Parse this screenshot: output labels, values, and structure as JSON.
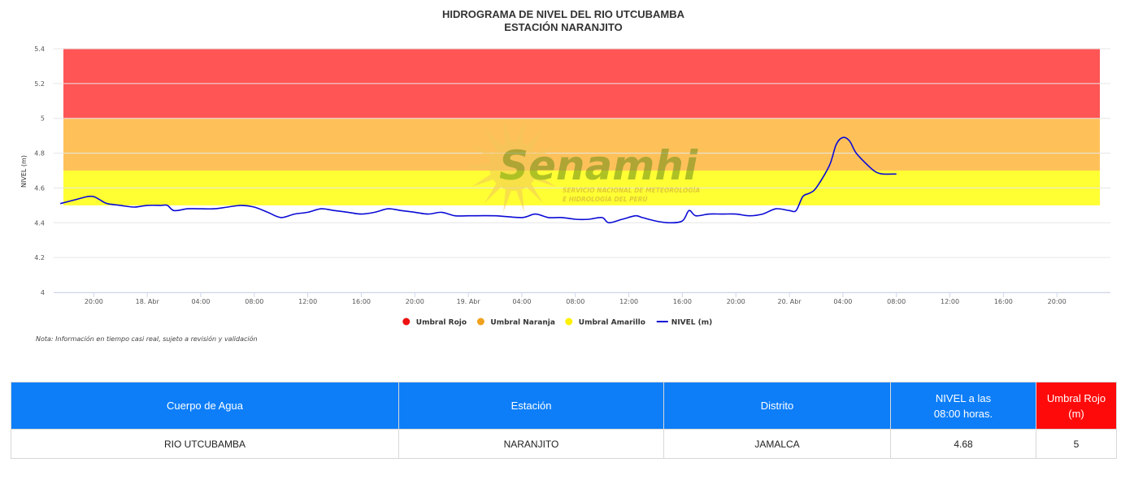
{
  "chart_data": {
    "type": "line",
    "title": "HIDROGRAMA DE NIVEL DEL RIO UTCUBAMBA",
    "subtitle": "ESTACIÓN NARANJITO",
    "ylabel": "NIVEL (m)",
    "ylim": [
      4,
      5.4
    ],
    "yticks": [
      4,
      4.2,
      4.4,
      4.6,
      4.8,
      5,
      5.2,
      5.4
    ],
    "xlim": [
      "2024-04-17T17:00",
      "2024-04-21T00:00"
    ],
    "xticks": [
      {
        "t": "2024-04-17T20:00",
        "label": "20:00"
      },
      {
        "t": "2024-04-18T00:00",
        "label": "18. Abr"
      },
      {
        "t": "2024-04-18T04:00",
        "label": "04:00"
      },
      {
        "t": "2024-04-18T08:00",
        "label": "08:00"
      },
      {
        "t": "2024-04-18T12:00",
        "label": "12:00"
      },
      {
        "t": "2024-04-18T16:00",
        "label": "16:00"
      },
      {
        "t": "2024-04-18T20:00",
        "label": "20:00"
      },
      {
        "t": "2024-04-19T00:00",
        "label": "19. Abr"
      },
      {
        "t": "2024-04-19T04:00",
        "label": "04:00"
      },
      {
        "t": "2024-04-19T08:00",
        "label": "08:00"
      },
      {
        "t": "2024-04-19T12:00",
        "label": "12:00"
      },
      {
        "t": "2024-04-19T16:00",
        "label": "16:00"
      },
      {
        "t": "2024-04-19T20:00",
        "label": "20:00"
      },
      {
        "t": "2024-04-20T00:00",
        "label": "20. Abr"
      },
      {
        "t": "2024-04-20T04:00",
        "label": "04:00"
      },
      {
        "t": "2024-04-20T08:00",
        "label": "08:00"
      },
      {
        "t": "2024-04-20T12:00",
        "label": "12:00"
      },
      {
        "t": "2024-04-20T16:00",
        "label": "16:00"
      },
      {
        "t": "2024-04-20T20:00",
        "label": "20:00"
      }
    ],
    "bands": [
      {
        "name": "Umbral Amarillo",
        "from": 4.5,
        "to": 4.7,
        "color": "#ffff33"
      },
      {
        "name": "Umbral Naranja",
        "from": 4.7,
        "to": 5.0,
        "color": "#fec15a"
      },
      {
        "name": "Umbral Rojo",
        "from": 5.0,
        "to": 5.4,
        "color": "#ff5555"
      }
    ],
    "series": [
      {
        "name": "NIVEL (m)",
        "color": "#0a0ad6",
        "points": [
          [
            "2024-04-17T17:30",
            4.51
          ],
          [
            "2024-04-17T18:30",
            4.53
          ],
          [
            "2024-04-17T19:30",
            4.55
          ],
          [
            "2024-04-17T20:00",
            4.55
          ],
          [
            "2024-04-17T20:30",
            4.53
          ],
          [
            "2024-04-17T21:00",
            4.51
          ],
          [
            "2024-04-17T22:00",
            4.5
          ],
          [
            "2024-04-17T23:00",
            4.49
          ],
          [
            "2024-04-18T00:00",
            4.5
          ],
          [
            "2024-04-18T01:00",
            4.5
          ],
          [
            "2024-04-18T01:30",
            4.5
          ],
          [
            "2024-04-18T02:00",
            4.47
          ],
          [
            "2024-04-18T03:00",
            4.48
          ],
          [
            "2024-04-18T04:00",
            4.48
          ],
          [
            "2024-04-18T05:00",
            4.48
          ],
          [
            "2024-04-18T06:00",
            4.49
          ],
          [
            "2024-04-18T07:00",
            4.5
          ],
          [
            "2024-04-18T08:00",
            4.49
          ],
          [
            "2024-04-18T09:00",
            4.46
          ],
          [
            "2024-04-18T10:00",
            4.43
          ],
          [
            "2024-04-18T11:00",
            4.45
          ],
          [
            "2024-04-18T12:00",
            4.46
          ],
          [
            "2024-04-18T13:00",
            4.48
          ],
          [
            "2024-04-18T14:00",
            4.47
          ],
          [
            "2024-04-18T15:00",
            4.46
          ],
          [
            "2024-04-18T16:00",
            4.45
          ],
          [
            "2024-04-18T17:00",
            4.46
          ],
          [
            "2024-04-18T18:00",
            4.48
          ],
          [
            "2024-04-18T19:00",
            4.47
          ],
          [
            "2024-04-18T20:00",
            4.46
          ],
          [
            "2024-04-18T21:00",
            4.45
          ],
          [
            "2024-04-18T22:00",
            4.46
          ],
          [
            "2024-04-18T23:00",
            4.44
          ],
          [
            "2024-04-19T00:00",
            4.44
          ],
          [
            "2024-04-19T02:00",
            4.44
          ],
          [
            "2024-04-19T04:00",
            4.43
          ],
          [
            "2024-04-19T05:00",
            4.45
          ],
          [
            "2024-04-19T06:00",
            4.43
          ],
          [
            "2024-04-19T07:00",
            4.43
          ],
          [
            "2024-04-19T08:00",
            4.42
          ],
          [
            "2024-04-19T09:00",
            4.42
          ],
          [
            "2024-04-19T10:00",
            4.43
          ],
          [
            "2024-04-19T10:30",
            4.4
          ],
          [
            "2024-04-19T11:30",
            4.42
          ],
          [
            "2024-04-19T12:30",
            4.44
          ],
          [
            "2024-04-19T13:00",
            4.43
          ],
          [
            "2024-04-19T14:00",
            4.41
          ],
          [
            "2024-04-19T15:00",
            4.4
          ],
          [
            "2024-04-19T16:00",
            4.41
          ],
          [
            "2024-04-19T16:30",
            4.47
          ],
          [
            "2024-04-19T17:00",
            4.44
          ],
          [
            "2024-04-19T18:00",
            4.45
          ],
          [
            "2024-04-19T19:00",
            4.45
          ],
          [
            "2024-04-19T20:00",
            4.45
          ],
          [
            "2024-04-19T21:00",
            4.44
          ],
          [
            "2024-04-19T22:00",
            4.45
          ],
          [
            "2024-04-19T23:00",
            4.48
          ],
          [
            "2024-04-20T00:00",
            4.47
          ],
          [
            "2024-04-20T00:30",
            4.47
          ],
          [
            "2024-04-20T01:00",
            4.55
          ],
          [
            "2024-04-20T01:30",
            4.57
          ],
          [
            "2024-04-20T02:00",
            4.6
          ],
          [
            "2024-04-20T03:00",
            4.73
          ],
          [
            "2024-04-20T03:30",
            4.85
          ],
          [
            "2024-04-20T04:00",
            4.89
          ],
          [
            "2024-04-20T04:30",
            4.87
          ],
          [
            "2024-04-20T05:00",
            4.8
          ],
          [
            "2024-04-20T06:00",
            4.72
          ],
          [
            "2024-04-20T06:30",
            4.69
          ],
          [
            "2024-04-20T07:00",
            4.68
          ],
          [
            "2024-04-20T08:00",
            4.68
          ]
        ]
      }
    ],
    "legend": {
      "placement": "bottom-center",
      "items": [
        {
          "name": "Umbral Rojo",
          "color": "#ee1111",
          "kind": "dot"
        },
        {
          "name": "Umbral Naranja",
          "color": "#f0a21e",
          "kind": "dot"
        },
        {
          "name": "Umbral Amarillo",
          "color": "#fef102",
          "kind": "dot"
        },
        {
          "name": "NIVEL (m)",
          "color": "#0a0ad6",
          "kind": "line"
        }
      ]
    },
    "grid": true
  },
  "watermark": {
    "brand": "Senamhi",
    "line1": "SERVICIO NACIONAL DE METEOROLOGÍA",
    "line2": "E HIDROLOGÍA DEL PERÚ"
  },
  "note": "Nota: Información en tiempo casi real, sujeto a revisión y validación",
  "table": {
    "headers": [
      "Cuerpo de Agua",
      "Estación",
      "Distrito",
      "NIVEL a las",
      "08:00 horas.",
      "Umbral Rojo (m)"
    ],
    "row": [
      "RIO UTCUBAMBA",
      "NARANJITO",
      "JAMALCA",
      "4.68",
      "5"
    ]
  }
}
